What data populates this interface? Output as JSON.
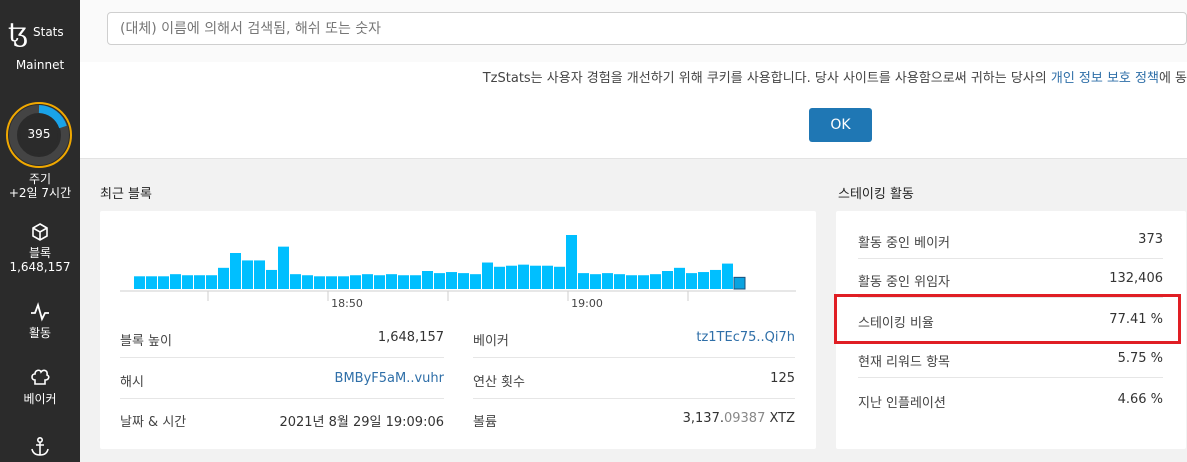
{
  "sidebar": {
    "logo_mark": "ꜩ",
    "logo_text": "Stats",
    "network": "Mainnet",
    "cycle_number": "395",
    "cycle_label": "주기",
    "cycle_time": "+2일 7시간",
    "blocks_label": "블록",
    "blocks_count": "1,648,157",
    "activity_label": "활동",
    "bakers_label": "베이커"
  },
  "search": {
    "placeholder": "(대체) 이름에 의해서 검색됨, 해쉬 또는 숫자"
  },
  "cookie": {
    "text": "TzStats는 사용자 경험을 개선하기 위해 쿠키를 사용합니다. 당사 사이트를 사용함으로써 귀하는 당사의 ",
    "link": "개인 정보 보호 정책",
    "suffix": "에 동",
    "ok_label": "OK"
  },
  "recent_blocks": {
    "title": "최근 블록",
    "time_labels": [
      "18:50",
      "19:00"
    ],
    "left": [
      {
        "key": "블록 높이",
        "value": "1,648,157"
      },
      {
        "key": "해시",
        "value": "BMByF5aM..vuhr"
      },
      {
        "key": "날짜 & 시간",
        "value": "2021년 8월 29일 19:09:06"
      }
    ],
    "right": [
      {
        "key": "베이커",
        "value": "tz1TEc75..Qi7h"
      },
      {
        "key": "연산 횟수",
        "value": "125"
      },
      {
        "key": "볼륨",
        "value_main": "3,137.",
        "value_dim": "09387",
        "value_unit": " XTZ"
      }
    ]
  },
  "chart_data": {
    "type": "bar",
    "values": [
      12,
      12,
      12,
      14,
      13,
      13,
      13,
      20,
      34,
      27,
      27,
      18,
      40,
      14,
      13,
      12,
      12,
      12,
      13,
      14,
      13,
      14,
      13,
      13,
      17,
      15,
      16,
      15,
      14,
      25,
      21,
      22,
      23,
      22,
      22,
      21,
      51,
      15,
      14,
      15,
      14,
      13,
      13,
      14,
      17,
      20,
      15,
      16,
      18,
      24,
      11
    ],
    "x_tick_labels": [
      "18:50",
      "19:00"
    ],
    "colors": {
      "bar": "#00bfff",
      "last_bar": "#0aa3e0"
    }
  },
  "staking": {
    "title": "스테이킹 활동",
    "rows": [
      {
        "key": "활동 중인 베이커",
        "value": "373"
      },
      {
        "key": "활동 중인 위임자",
        "value": "132,406"
      },
      {
        "key": "스테이킹 비율",
        "value": "77.41 %"
      },
      {
        "key": "현재 리워드 항목",
        "value": "5.75 %"
      },
      {
        "key": "지난 인플레이션",
        "value": "4.66 %"
      }
    ]
  }
}
